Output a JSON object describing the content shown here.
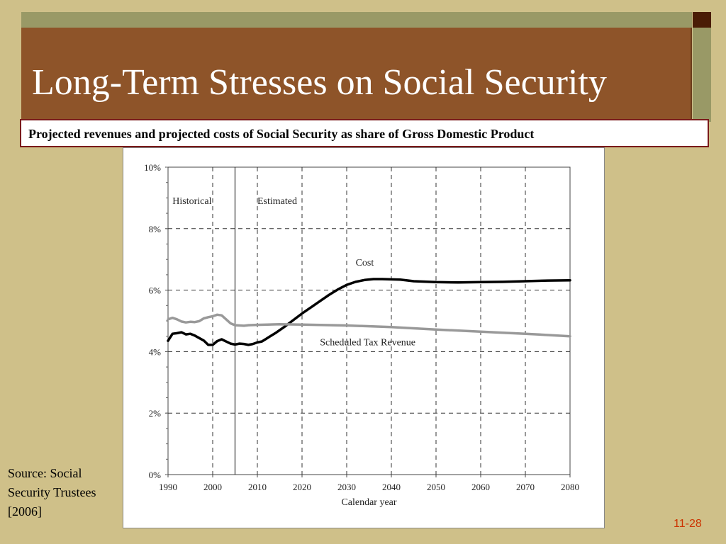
{
  "slide": {
    "title": "Long-Term Stresses on Social Security",
    "subtitle": "Projected revenues and projected costs of Social Security as share of Gross Domestic Product",
    "source_note": "Source: Social Security Trustees [2006]",
    "page_number": "11-28"
  },
  "colors": {
    "background": "#cfc089",
    "title_panel": "#8e5429",
    "accent_strip": "#999966",
    "subtitle_border": "#7a1a1a",
    "cost_line": "#000000",
    "revenue_line": "#999999"
  },
  "chart_data": {
    "type": "line",
    "xlabel": "Calendar year",
    "ylabel": "",
    "xlim": [
      1990,
      2080
    ],
    "ylim": [
      0,
      10
    ],
    "x_ticks": [
      1990,
      2000,
      2010,
      2020,
      2030,
      2040,
      2050,
      2060,
      2070,
      2080
    ],
    "y_ticks": [
      "0%",
      "2%",
      "4%",
      "6%",
      "8%",
      "10%"
    ],
    "grid": "dashed",
    "divider_year": 2005,
    "region_labels": [
      {
        "text": "Historical",
        "x": 1991,
        "y": 8.8
      },
      {
        "text": "Estimated",
        "x": 2010,
        "y": 8.8
      }
    ],
    "series": [
      {
        "name": "Cost",
        "label_position": {
          "x": 2032,
          "y": 6.8
        },
        "x": [
          1990,
          1991,
          1992,
          1993,
          1994,
          1995,
          1996,
          1997,
          1998,
          1999,
          2000,
          2001,
          2002,
          2003,
          2004,
          2005,
          2006,
          2007,
          2008,
          2009,
          2010,
          2011,
          2012,
          2014,
          2016,
          2018,
          2020,
          2022,
          2024,
          2026,
          2028,
          2030,
          2032,
          2034,
          2036,
          2038,
          2040,
          2042,
          2045,
          2050,
          2055,
          2060,
          2065,
          2070,
          2075,
          2080
        ],
        "values": [
          4.35,
          4.58,
          4.6,
          4.63,
          4.56,
          4.58,
          4.52,
          4.44,
          4.36,
          4.22,
          4.22,
          4.34,
          4.4,
          4.33,
          4.26,
          4.23,
          4.26,
          4.25,
          4.22,
          4.25,
          4.3,
          4.33,
          4.42,
          4.6,
          4.8,
          5.02,
          5.24,
          5.44,
          5.64,
          5.84,
          6.02,
          6.17,
          6.27,
          6.33,
          6.36,
          6.36,
          6.35,
          6.34,
          6.29,
          6.26,
          6.25,
          6.26,
          6.27,
          6.29,
          6.31,
          6.32
        ]
      },
      {
        "name": "Scheduled Tax Revenue",
        "label_position": {
          "x": 2024,
          "y": 4.2
        },
        "x": [
          1990,
          1991,
          1992,
          1993,
          1994,
          1995,
          1996,
          1997,
          1998,
          1999,
          2000,
          2001,
          2002,
          2003,
          2004,
          2005,
          2006,
          2007,
          2008,
          2010,
          2015,
          2020,
          2030,
          2040,
          2050,
          2060,
          2070,
          2080
        ],
        "values": [
          5.05,
          5.1,
          5.05,
          4.98,
          4.95,
          4.97,
          4.96,
          4.99,
          5.08,
          5.12,
          5.15,
          5.2,
          5.18,
          5.05,
          4.92,
          4.86,
          4.85,
          4.84,
          4.86,
          4.87,
          4.89,
          4.88,
          4.85,
          4.8,
          4.72,
          4.65,
          4.58,
          4.5
        ]
      }
    ]
  }
}
